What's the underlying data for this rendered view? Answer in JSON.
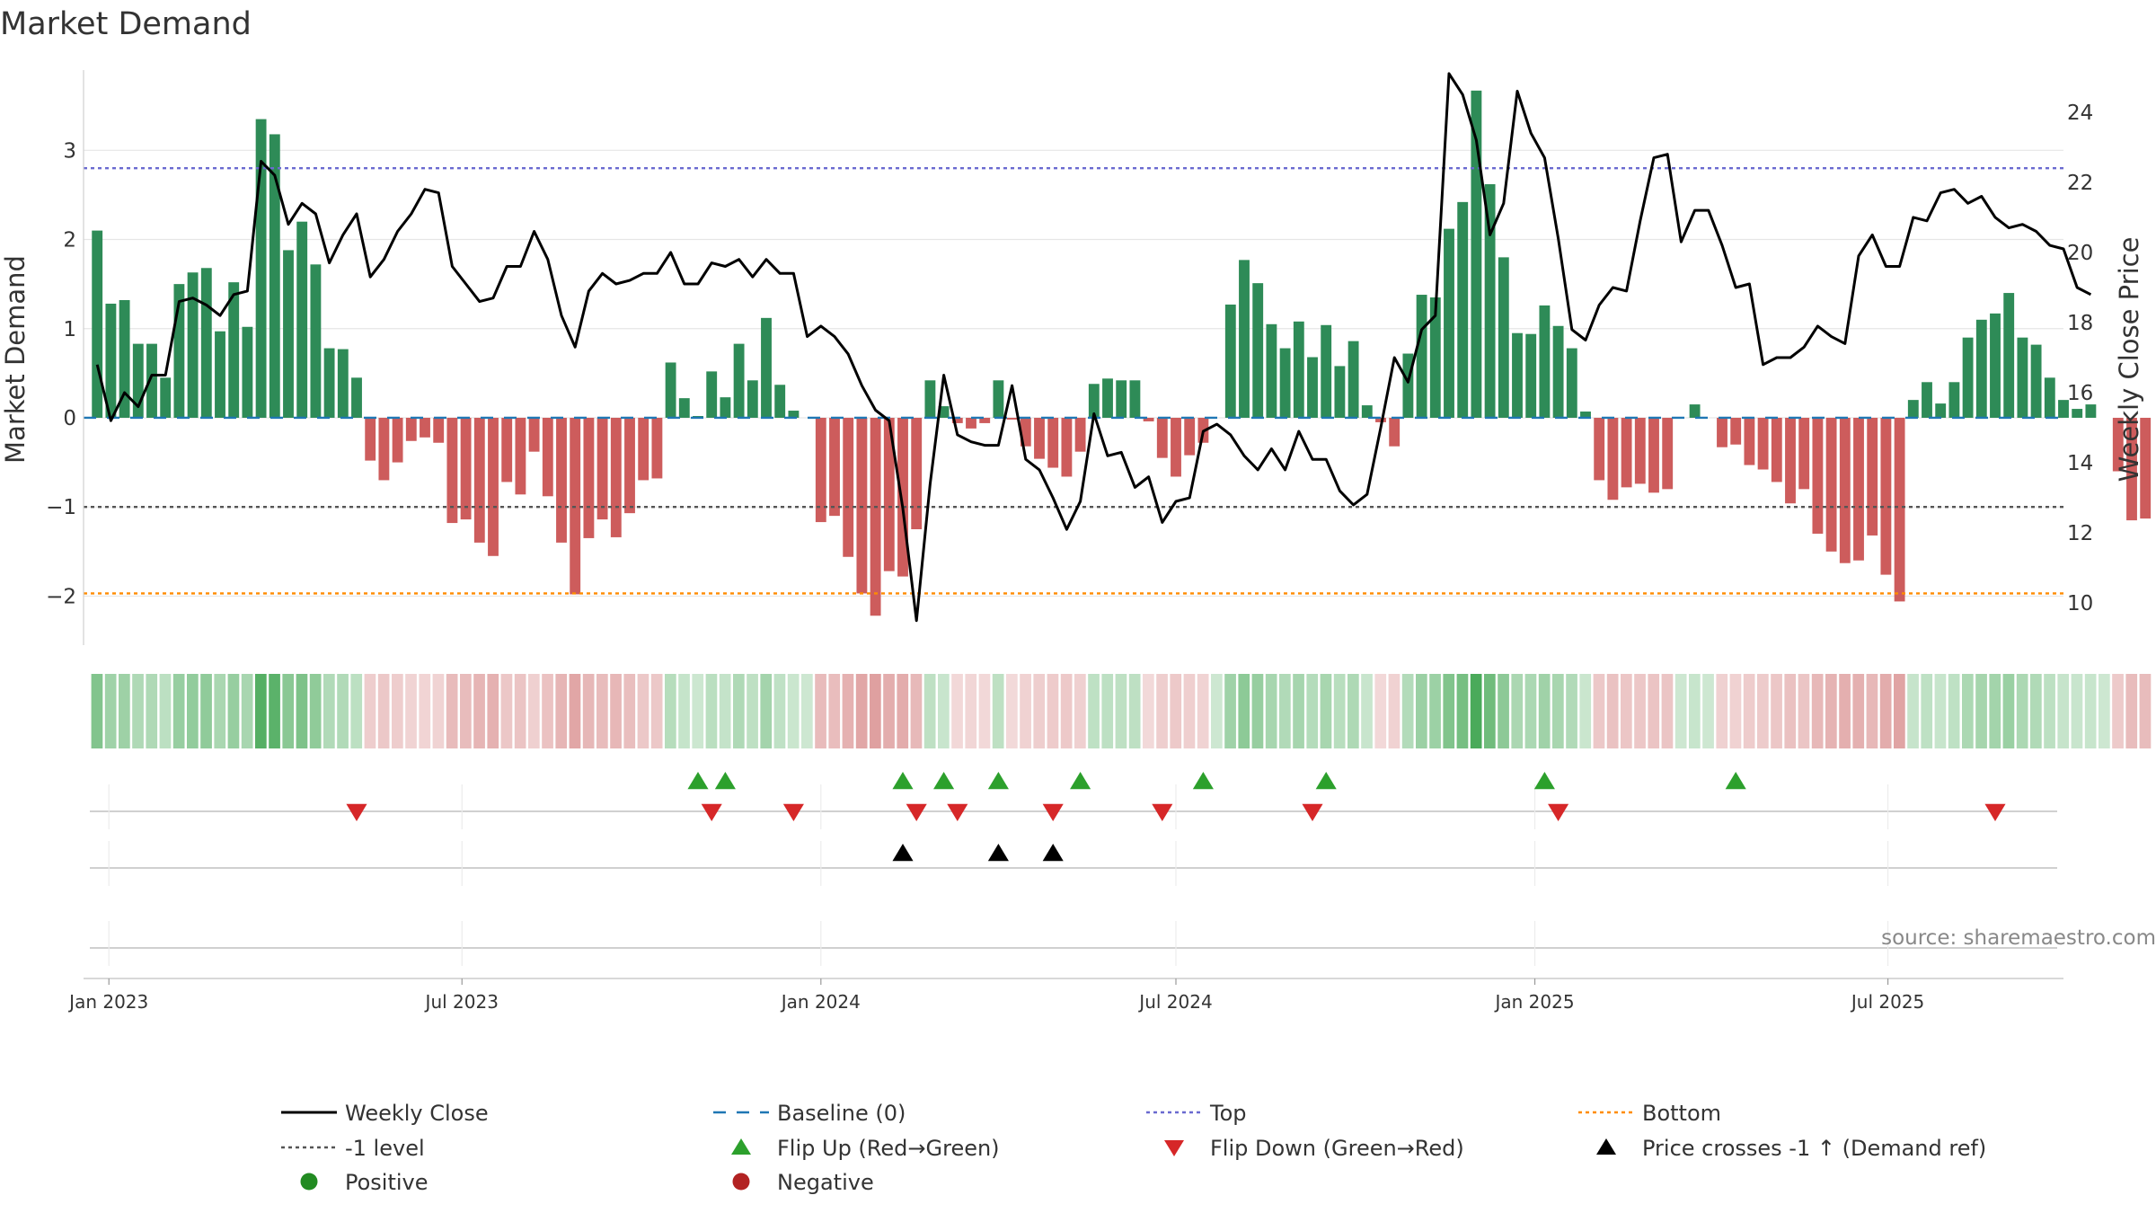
{
  "chart_data": {
    "type": "bar",
    "title": "Market Demand",
    "ylabel": "Market Demand",
    "y2label": "Weekly Close Price",
    "ylim": [
      -2.55,
      3.9
    ],
    "y_ticks": [
      3,
      2,
      1,
      0,
      -1,
      -2
    ],
    "y_tick_labels": [
      "3",
      "2",
      "1",
      "0",
      "−1",
      "−2"
    ],
    "y2lim": [
      8.8,
      25.2
    ],
    "y2_ticks": [
      24,
      22,
      20,
      18,
      16,
      14,
      12,
      10
    ],
    "y2_tick_labels": [
      "24",
      "22",
      "20",
      "18",
      "16",
      "14",
      "12",
      "10"
    ],
    "date_range": [
      "2022-12-19",
      "2025-09-29"
    ],
    "x_ticks": [
      {
        "date": "2023-01-01",
        "label": "Jan 2023"
      },
      {
        "date": "2023-07-01",
        "label": "Jul 2023"
      },
      {
        "date": "2024-01-01",
        "label": "Jan 2024"
      },
      {
        "date": "2024-07-01",
        "label": "Jul 2024"
      },
      {
        "date": "2025-01-01",
        "label": "Jan 2025"
      },
      {
        "date": "2025-07-01",
        "label": "Jul 2025"
      }
    ],
    "reference_lines": {
      "top": 2.8,
      "minus_one": -1,
      "bottom": -1.97,
      "baseline": 0
    },
    "series": [
      {
        "name": "Market Demand",
        "start_date": "2022-12-26",
        "week_step_days": 7,
        "values": [
          2.1,
          1.28,
          1.32,
          0.83,
          0.83,
          0.45,
          1.5,
          1.63,
          1.68,
          0.97,
          1.52,
          1.02,
          3.35,
          3.18,
          1.88,
          2.2,
          1.72,
          0.78,
          0.77,
          0.45,
          -0.48,
          -0.7,
          -0.5,
          -0.26,
          -0.22,
          -0.28,
          -1.18,
          -1.14,
          -1.4,
          -1.55,
          -0.72,
          -0.86,
          -0.38,
          -0.88,
          -1.4,
          -1.98,
          -1.35,
          -1.14,
          -1.34,
          -1.07,
          -0.7,
          -0.68,
          0.62,
          0.22,
          0.02,
          0.52,
          0.23,
          0.83,
          0.42,
          1.12,
          0.37,
          0.08,
          0,
          -1.17,
          -1.1,
          -1.56,
          -1.97,
          -2.22,
          -1.72,
          -1.78,
          -1.25,
          0.42,
          0.13,
          -0.06,
          -0.12,
          -0.06,
          0.42,
          -0.02,
          -0.32,
          -0.46,
          -0.56,
          -0.66,
          -0.38,
          0.38,
          0.44,
          0.42,
          0.42,
          -0.04,
          -0.45,
          -0.66,
          -0.42,
          -0.28,
          0,
          1.27,
          1.77,
          1.51,
          1.05,
          0.78,
          1.08,
          0.68,
          1.04,
          0.58,
          0.86,
          0.14,
          -0.05,
          -0.32,
          0.72,
          1.38,
          1.35,
          2.12,
          2.42,
          3.67,
          2.62,
          1.8,
          0.95,
          0.94,
          1.26,
          1.03,
          0.78,
          0.07,
          -0.7,
          -0.92,
          -0.78,
          -0.74,
          -0.84,
          -0.8,
          0,
          0.15,
          0,
          -0.33,
          -0.3,
          -0.53,
          -0.58,
          -0.72,
          -0.96,
          -0.8,
          -1.3,
          -1.5,
          -1.63,
          -1.6,
          -1.32,
          -1.76,
          -2.06,
          0.2,
          0.4,
          0.16,
          0.4,
          0.9,
          1.1,
          1.17,
          1.4,
          0.9,
          0.82,
          0.45,
          0.2,
          0.1,
          0.15,
          0,
          -0.6,
          -1.15,
          -1.13
        ]
      },
      {
        "name": "Weekly Close",
        "start_date": "2022-12-26",
        "week_step_days": 7,
        "values": [
          16.8,
          15.2,
          16,
          15.6,
          16.5,
          16.5,
          18.6,
          18.7,
          18.5,
          18.2,
          18.8,
          18.9,
          22.6,
          22.2,
          20.8,
          21.4,
          21.1,
          19.7,
          20.5,
          21.1,
          19.3,
          19.8,
          20.6,
          21.1,
          21.8,
          21.7,
          19.6,
          19.1,
          18.6,
          18.7,
          19.6,
          19.6,
          20.6,
          19.8,
          18.2,
          17.3,
          18.9,
          19.4,
          19.1,
          19.2,
          19.4,
          19.4,
          20,
          19.1,
          19.1,
          19.7,
          19.6,
          19.8,
          19.3,
          19.8,
          19.4,
          19.4,
          17.6,
          17.9,
          17.6,
          17.1,
          16.2,
          15.5,
          15.2,
          12.7,
          9.5,
          13.4,
          16.5,
          14.8,
          14.6,
          14.5,
          14.5,
          16.2,
          14.1,
          13.8,
          13,
          12.1,
          12.9,
          15.4,
          14.2,
          14.3,
          13.3,
          13.6,
          12.3,
          12.9,
          13,
          14.9,
          15.1,
          14.8,
          14.2,
          13.8,
          14.4,
          13.8,
          14.9,
          14.1,
          14.1,
          13.2,
          12.8,
          13.1,
          15,
          17,
          16.3,
          17.8,
          18.2,
          25.1,
          24.5,
          23.2,
          20.5,
          21.4,
          24.6,
          23.4,
          22.7,
          20.4,
          17.8,
          17.5,
          18.5,
          19,
          18.9,
          20.9,
          22.7,
          22.8,
          20.3,
          21.2,
          21.2,
          20.2,
          19,
          19.1,
          16.8,
          17,
          17,
          17.3,
          17.9,
          17.6,
          17.4,
          19.9,
          20.5,
          19.6,
          19.6,
          21,
          20.9,
          21.7,
          21.8,
          21.4,
          21.6,
          21,
          20.7,
          20.8,
          20.6,
          20.2,
          20.1,
          19,
          18.8
        ]
      }
    ],
    "heat_strip": {
      "name": "Demand heat strip",
      "positive_color": "#4aaa5a",
      "negative_color": "#d27a7a",
      "uses_series": "Market Demand"
    },
    "event_rows": [
      {
        "name": "Flip Up (Red→Green)",
        "marker": "triangle-up",
        "color": "#2ca02c",
        "dates": [
          "2023-10-30",
          "2023-11-13",
          "2024-02-12",
          "2024-03-04",
          "2024-04-01",
          "2024-05-13",
          "2024-07-15",
          "2024-09-16",
          "2025-01-06",
          "2025-04-14"
        ]
      },
      {
        "name": "Flip Down (Green→Red)",
        "marker": "triangle-down",
        "color": "#d62728",
        "dates": [
          "2023-05-08",
          "2023-11-06",
          "2023-12-18",
          "2024-02-19",
          "2024-03-11",
          "2024-04-29",
          "2024-06-24",
          "2024-09-09",
          "2025-01-13",
          "2025-08-25"
        ]
      },
      {
        "name": "Price crosses -1 ↑ (Demand ref)",
        "marker": "triangle-up",
        "color": "#000000",
        "dates": [
          "2024-02-12",
          "2024-04-01",
          "2024-04-29"
        ]
      },
      {
        "name": "Positive / Negative",
        "marker": "circle",
        "color": "#228b22",
        "dates": []
      }
    ],
    "source": "source: sharemaestro.com",
    "legend_position": "bottom",
    "legend": [
      {
        "label": "Weekly Close",
        "kind": "line",
        "color": "#000000"
      },
      {
        "label": "Baseline (0)",
        "kind": "dash",
        "color": "#1f77b4"
      },
      {
        "label": "Top",
        "kind": "dot",
        "color": "#6a6ad0"
      },
      {
        "label": "Bottom",
        "kind": "dot",
        "color": "#ff8c00"
      },
      {
        "label": "-1 level",
        "kind": "dot",
        "color": "#555555"
      },
      {
        "label": "Flip Up (Red→Green)",
        "kind": "tri-up",
        "color": "#2ca02c"
      },
      {
        "label": "Flip Down (Green→Red)",
        "kind": "tri-down",
        "color": "#d62728"
      },
      {
        "label": "Price crosses -1 ↑ (Demand ref)",
        "kind": "tri-up",
        "color": "#000000"
      },
      {
        "label": "Positive",
        "kind": "circle",
        "color": "#228b22"
      },
      {
        "label": "Negative",
        "kind": "circle",
        "color": "#b22222"
      }
    ],
    "colors": {
      "positive_bar": "#2e8b57",
      "negative_bar": "#cd5c5c",
      "price_line": "#000000",
      "top_line": "#6a6ad0",
      "minus_one_line": "#555555",
      "bottom_line": "#ff8c00",
      "baseline": "#1f77b4",
      "grid": "#e6e6e6",
      "axis": "#d0d0d0"
    }
  }
}
